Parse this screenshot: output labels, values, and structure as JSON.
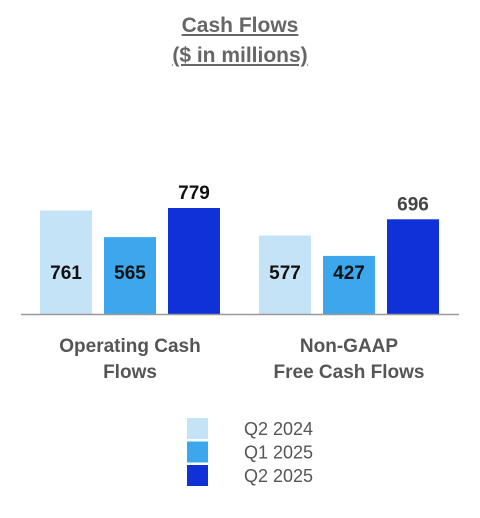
{
  "chart_data": {
    "type": "bar",
    "title": [
      "Cash Flows",
      "($ in millions)"
    ],
    "categories": [
      [
        "Operating Cash",
        "Flows"
      ],
      [
        "Non-GAAP",
        "Free Cash Flows"
      ]
    ],
    "series": [
      {
        "name": "Q2 2024",
        "color": "#c5e3f7",
        "values": [
          761,
          577
        ]
      },
      {
        "name": "Q1 2025",
        "color": "#3da7ee",
        "values": [
          565,
          427
        ]
      },
      {
        "name": "Q2 2025",
        "color": "#1030d8",
        "values": [
          779,
          696
        ]
      }
    ],
    "ylim": [
      0,
      779
    ],
    "grid": false,
    "legend_position": "bottom"
  }
}
